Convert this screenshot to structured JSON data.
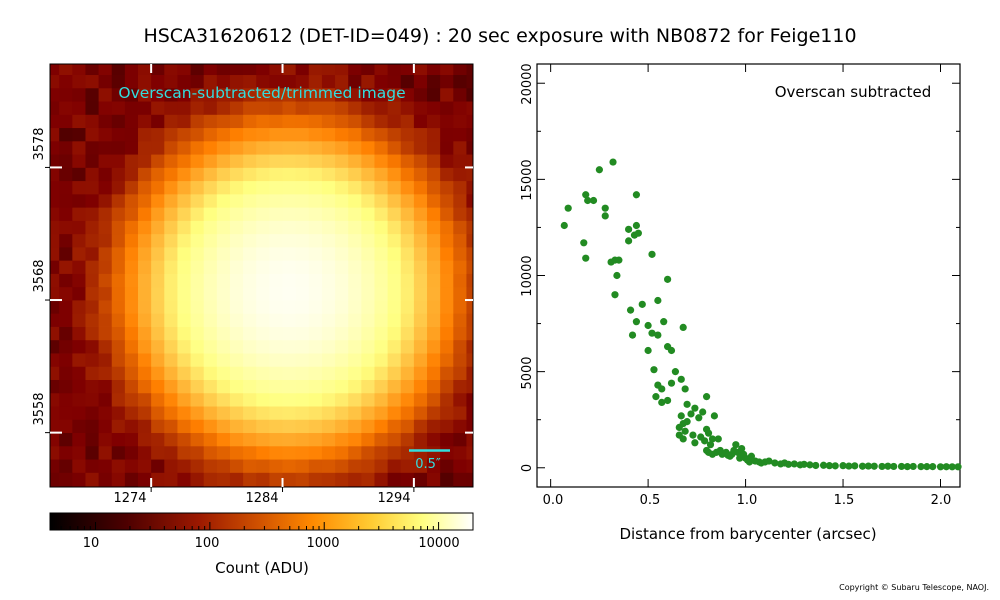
{
  "figure": {
    "title": "HSCA31620612 (DET-ID=049) :  20 sec exposure with NB0872 for Feige110",
    "copyright": "Copyright © Subaru Telescope, NAOJ."
  },
  "image_panel": {
    "label": "Overscan-subtracted/trimmed image",
    "scalebar_label": "0.5″",
    "colors": {
      "label": "#33dddd",
      "scalebar": "#33dddd"
    }
  },
  "colorbar": {
    "tick_labels": [
      "10",
      "100",
      "1000",
      "10000"
    ],
    "label": "Count (ADU)"
  },
  "profile_panel": {
    "annotation": "Overscan subtracted",
    "point_color": "#228b22"
  },
  "chart_data": [
    {
      "type": "heatmap",
      "title": "Overscan-subtracted/trimmed image",
      "x_tick_labels": [
        "1274",
        "1284",
        "1294"
      ],
      "y_tick_labels": [
        "3558",
        "3568",
        "3578"
      ],
      "x_ticks": [
        1274,
        1284,
        1294
      ],
      "y_ticks": [
        3558,
        3568,
        3578
      ],
      "xlim": [
        1266.3,
        1298.5
      ],
      "ylim": [
        3553.9,
        3585.8
      ],
      "source_center": [
        1284.5,
        3568.7
      ],
      "source_peak_adu": 16000,
      "background_adu": 30,
      "colormap": "afmhot",
      "color_scale": "log",
      "color_range_adu": [
        4,
        20000
      ]
    },
    {
      "type": "scatter",
      "annotation": "Overscan subtracted",
      "xlabel": "Distance from barycenter (arcsec)",
      "ylabel": "",
      "x_tick_labels": [
        "0.0",
        "0.5",
        "1.0",
        "1.5",
        "2.0"
      ],
      "y_tick_labels": [
        "0",
        "5000",
        "10000",
        "15000",
        "20000"
      ],
      "x_ticks": [
        0,
        0.5,
        1.0,
        1.5,
        2.0
      ],
      "y_ticks": [
        0,
        5000,
        10000,
        15000,
        20000
      ],
      "xlim": [
        -0.07,
        2.1
      ],
      "ylim": [
        -1000,
        21000
      ],
      "points": [
        [
          0.07,
          12600
        ],
        [
          0.09,
          13500
        ],
        [
          0.17,
          11700
        ],
        [
          0.18,
          14200
        ],
        [
          0.19,
          13900
        ],
        [
          0.18,
          10900
        ],
        [
          0.22,
          13900
        ],
        [
          0.25,
          15500
        ],
        [
          0.28,
          13500
        ],
        [
          0.28,
          13100
        ],
        [
          0.31,
          10700
        ],
        [
          0.32,
          15900
        ],
        [
          0.33,
          10800
        ],
        [
          0.35,
          10800
        ],
        [
          0.34,
          10000
        ],
        [
          0.33,
          9000
        ],
        [
          0.4,
          12400
        ],
        [
          0.4,
          11800
        ],
        [
          0.43,
          12100
        ],
        [
          0.44,
          12600
        ],
        [
          0.44,
          14200
        ],
        [
          0.45,
          12200
        ],
        [
          0.41,
          8200
        ],
        [
          0.44,
          7600
        ],
        [
          0.42,
          6900
        ],
        [
          0.47,
          8500
        ],
        [
          0.52,
          11100
        ],
        [
          0.5,
          7400
        ],
        [
          0.52,
          7000
        ],
        [
          0.55,
          6900
        ],
        [
          0.55,
          8700
        ],
        [
          0.58,
          7600
        ],
        [
          0.5,
          6100
        ],
        [
          0.53,
          5100
        ],
        [
          0.6,
          6300
        ],
        [
          0.62,
          6100
        ],
        [
          0.6,
          9800
        ],
        [
          0.55,
          4300
        ],
        [
          0.57,
          4100
        ],
        [
          0.54,
          3700
        ],
        [
          0.57,
          3400
        ],
        [
          0.6,
          3500
        ],
        [
          0.62,
          4400
        ],
        [
          0.64,
          5000
        ],
        [
          0.67,
          4600
        ],
        [
          0.68,
          7300
        ],
        [
          0.69,
          4100
        ],
        [
          0.7,
          3300
        ],
        [
          0.66,
          2100
        ],
        [
          0.67,
          2700
        ],
        [
          0.68,
          2300
        ],
        [
          0.69,
          1900
        ],
        [
          0.7,
          2400
        ],
        [
          0.72,
          2800
        ],
        [
          0.74,
          3100
        ],
        [
          0.76,
          2600
        ],
        [
          0.78,
          2900
        ],
        [
          0.8,
          3700
        ],
        [
          0.66,
          1700
        ],
        [
          0.68,
          1500
        ],
        [
          0.73,
          1700
        ],
        [
          0.74,
          1300
        ],
        [
          0.77,
          1600
        ],
        [
          0.79,
          1400
        ],
        [
          0.8,
          2000
        ],
        [
          0.81,
          1800
        ],
        [
          0.83,
          1500
        ],
        [
          0.84,
          2700
        ],
        [
          0.82,
          1200
        ],
        [
          0.86,
          1500
        ],
        [
          0.8,
          900
        ],
        [
          0.81,
          800
        ],
        [
          0.83,
          700
        ],
        [
          0.85,
          800
        ],
        [
          0.87,
          900
        ],
        [
          0.88,
          700
        ],
        [
          0.9,
          800
        ],
        [
          0.91,
          650
        ],
        [
          0.93,
          700
        ],
        [
          0.94,
          900
        ],
        [
          0.95,
          1200
        ],
        [
          0.96,
          800
        ],
        [
          0.92,
          600
        ],
        [
          0.97,
          500
        ],
        [
          0.98,
          1000
        ],
        [
          0.99,
          700
        ],
        [
          1.0,
          500
        ],
        [
          1.01,
          400
        ],
        [
          1.02,
          300
        ],
        [
          1.03,
          600
        ],
        [
          1.05,
          350
        ],
        [
          1.07,
          300
        ],
        [
          1.08,
          250
        ],
        [
          1.1,
          300
        ],
        [
          1.12,
          350
        ],
        [
          1.15,
          250
        ],
        [
          1.18,
          200
        ],
        [
          1.2,
          250
        ],
        [
          1.22,
          180
        ],
        [
          1.25,
          200
        ],
        [
          1.28,
          150
        ],
        [
          1.3,
          180
        ],
        [
          1.33,
          150
        ],
        [
          1.36,
          120
        ],
        [
          1.4,
          130
        ],
        [
          1.43,
          110
        ],
        [
          1.46,
          100
        ],
        [
          1.5,
          110
        ],
        [
          1.53,
          90
        ],
        [
          1.56,
          100
        ],
        [
          1.6,
          80
        ],
        [
          1.63,
          90
        ],
        [
          1.66,
          80
        ],
        [
          1.7,
          70
        ],
        [
          1.73,
          80
        ],
        [
          1.76,
          70
        ],
        [
          1.8,
          70
        ],
        [
          1.83,
          60
        ],
        [
          1.86,
          70
        ],
        [
          1.9,
          60
        ],
        [
          1.93,
          60
        ],
        [
          1.96,
          60
        ],
        [
          2.0,
          50
        ],
        [
          2.03,
          55
        ],
        [
          2.06,
          50
        ],
        [
          2.09,
          50
        ]
      ]
    }
  ]
}
